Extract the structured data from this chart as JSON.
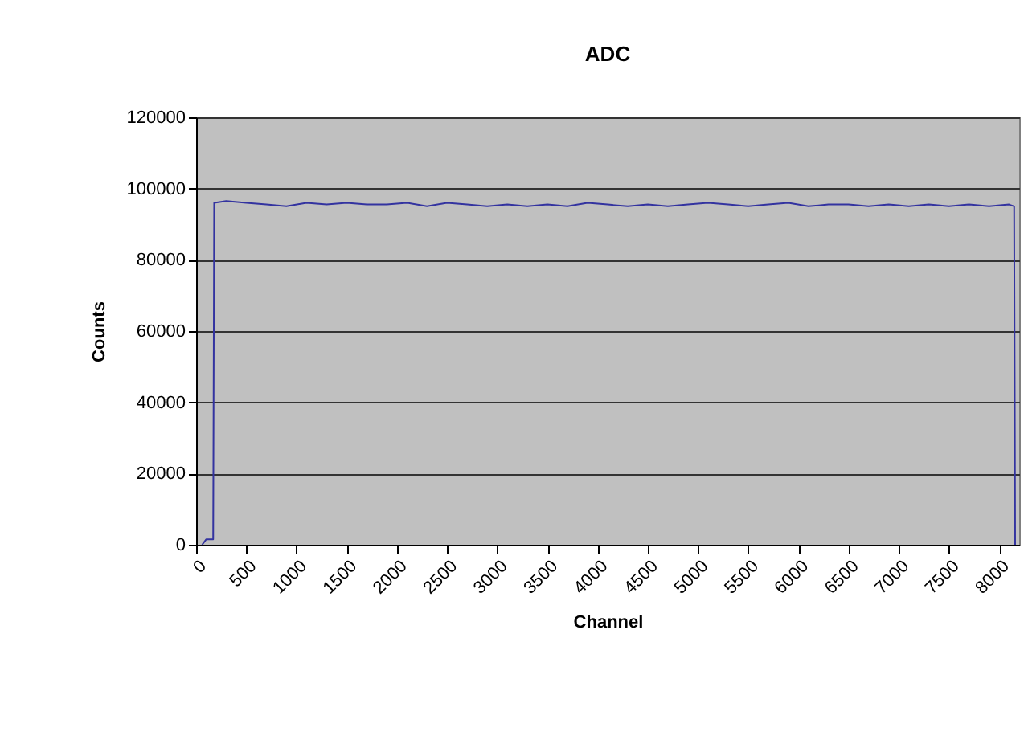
{
  "chart_data": {
    "type": "line",
    "title": "ADC",
    "xlabel": "Channel",
    "ylabel": "Counts",
    "series": [
      {
        "color": "#3333a0",
        "x": [
          60,
          100,
          170,
          180,
          300,
          500,
          700,
          900,
          1100,
          1300,
          1500,
          1700,
          1900,
          2100,
          2300,
          2500,
          2700,
          2900,
          3100,
          3300,
          3500,
          3700,
          3900,
          4100,
          4300,
          4500,
          4700,
          4900,
          5100,
          5300,
          5500,
          5700,
          5900,
          6100,
          6300,
          6500,
          6700,
          6900,
          7100,
          7300,
          7500,
          7700,
          7900,
          8100,
          8150,
          8160
        ],
        "values": [
          0,
          1500,
          1500,
          96000,
          96500,
          96000,
          95500,
          95000,
          96000,
          95500,
          96000,
          95500,
          95500,
          96000,
          95000,
          96000,
          95500,
          95000,
          95500,
          95000,
          95500,
          95000,
          96000,
          95500,
          95000,
          95500,
          95000,
          95500,
          96000,
          95500,
          95000,
          95500,
          96000,
          95000,
          95500,
          95500,
          95000,
          95500,
          95000,
          95500,
          95000,
          95500,
          95000,
          95500,
          95000,
          0
        ]
      }
    ],
    "xlim": [
      0,
      8200
    ],
    "xticks": [
      0,
      500,
      1000,
      1500,
      2000,
      2500,
      3000,
      3500,
      4000,
      4500,
      5000,
      5500,
      6000,
      6500,
      7000,
      7500,
      8000
    ],
    "ylim": [
      0,
      120000
    ],
    "yticks": [
      0,
      20000,
      40000,
      60000,
      80000,
      100000,
      120000
    ],
    "grid": "y",
    "legend": false,
    "marker": "none",
    "line_style": "solid"
  }
}
